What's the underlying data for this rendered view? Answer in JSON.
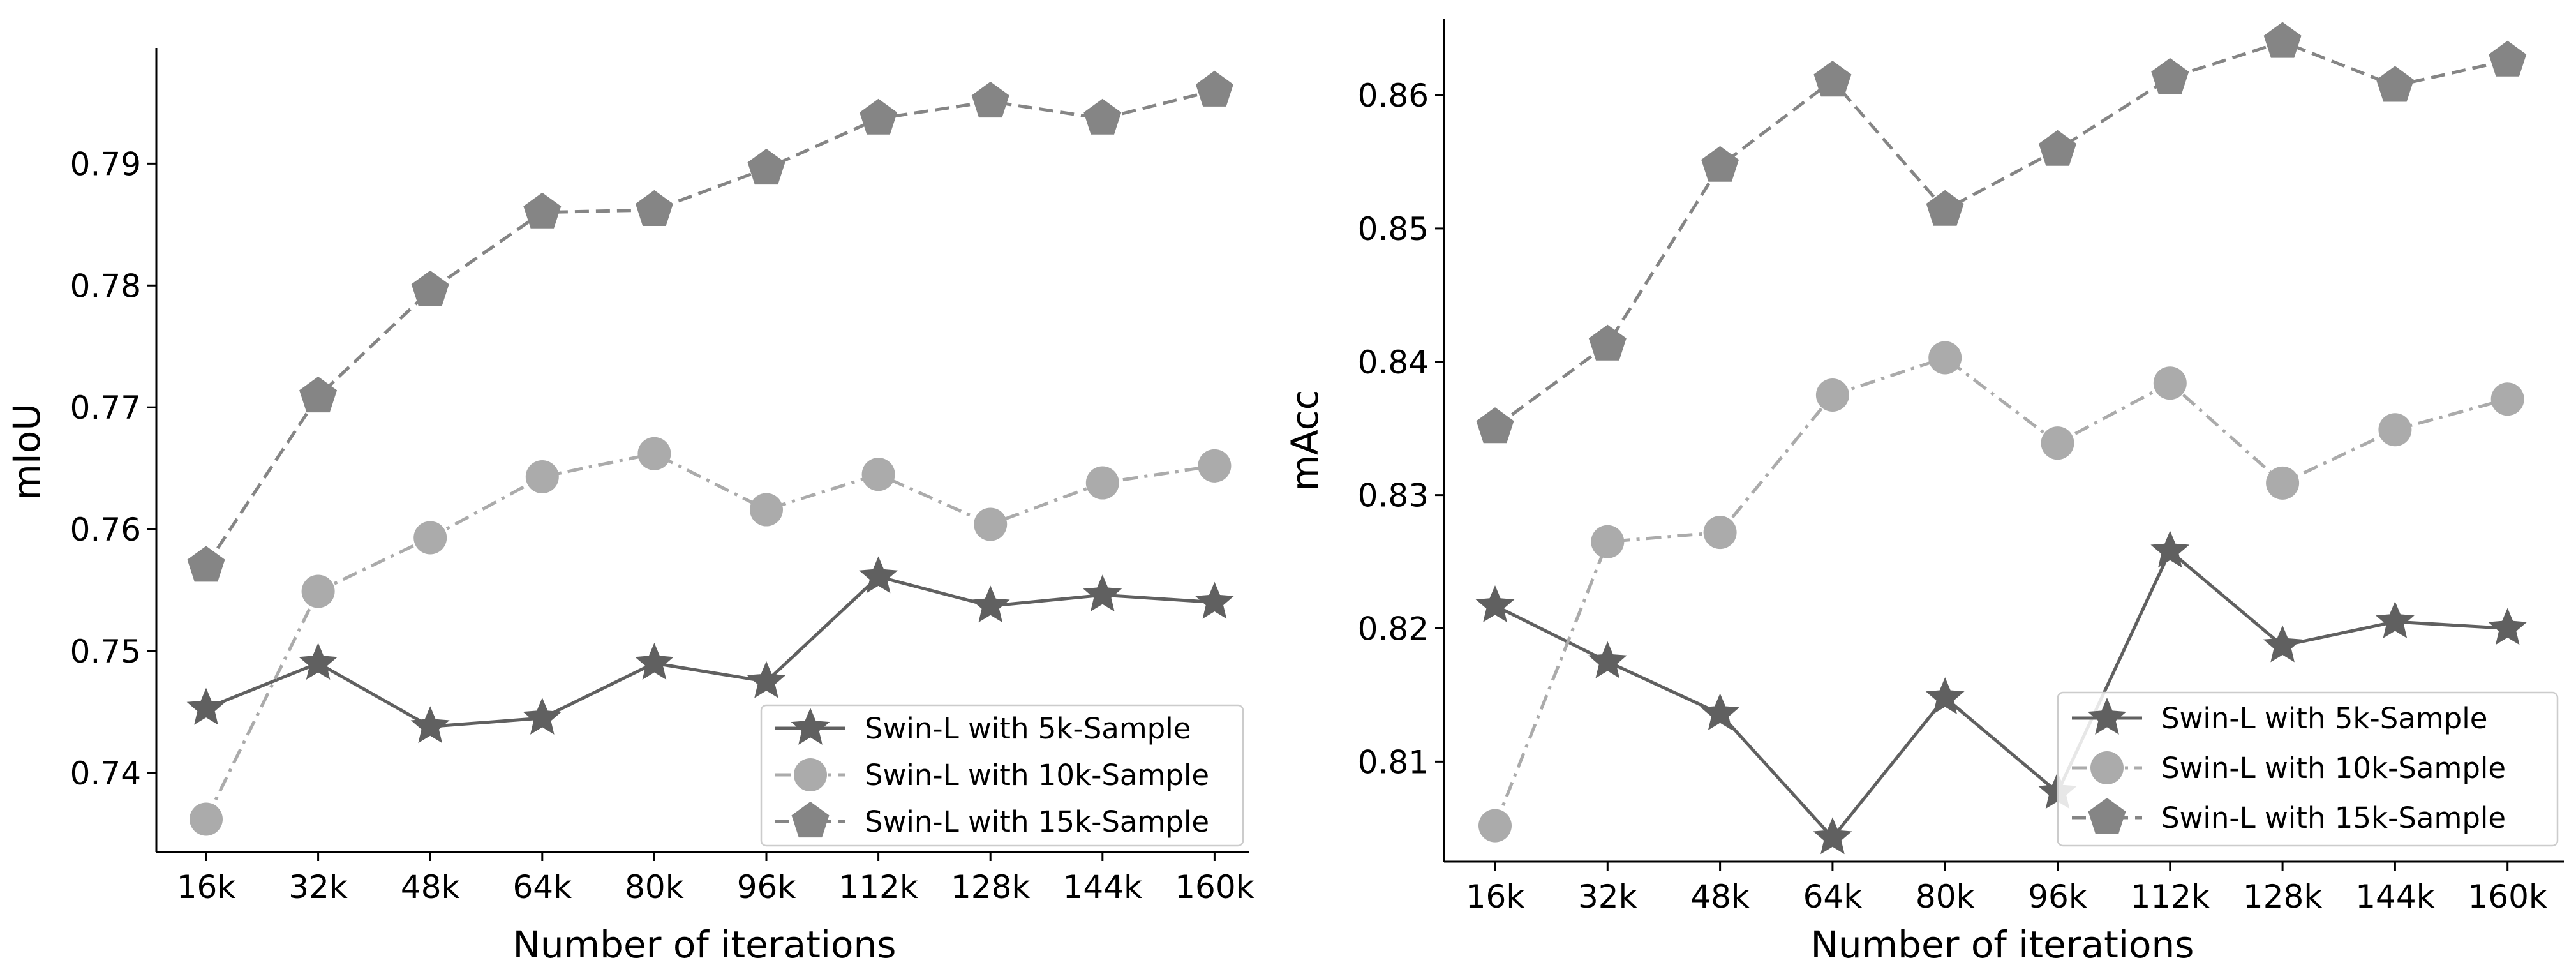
{
  "chart_data": [
    {
      "type": "line",
      "title": "",
      "xlabel": "Number of iterations",
      "ylabel": "mIoU",
      "categories": [
        "16k",
        "32k",
        "48k",
        "64k",
        "80k",
        "96k",
        "112k",
        "128k",
        "144k",
        "160k"
      ],
      "ylim": [
        0.7335,
        0.7995
      ],
      "yticks": [
        0.74,
        0.75,
        0.76,
        0.77,
        0.78,
        0.79
      ],
      "ytick_labels": [
        "0.74",
        "0.75",
        "0.76",
        "0.77",
        "0.78",
        "0.79"
      ],
      "legend_position": "lower-right",
      "series": [
        {
          "name": "Swin-L with 5k-Sample",
          "marker": "star",
          "linestyle": "solid",
          "color": "#606060",
          "values": [
            0.7453,
            0.749,
            0.7438,
            0.7445,
            0.749,
            0.7475,
            0.7561,
            0.7537,
            0.7546,
            0.754
          ]
        },
        {
          "name": "Swin-L with 10k-Sample",
          "marker": "circle",
          "linestyle": "dashdot",
          "color": "#ababab",
          "values": [
            0.7362,
            0.7549,
            0.7593,
            0.7643,
            0.7662,
            0.7616,
            0.7645,
            0.7604,
            0.7638,
            0.7652
          ]
        },
        {
          "name": "Swin-L with 15k-Sample",
          "marker": "pentagon",
          "linestyle": "dashed",
          "color": "#858585",
          "values": [
            0.757,
            0.7709,
            0.7796,
            0.786,
            0.7862,
            0.7896,
            0.7937,
            0.7951,
            0.7937,
            0.796
          ]
        }
      ]
    },
    {
      "type": "line",
      "title": "",
      "xlabel": "Number of iterations",
      "ylabel": "mAcc",
      "categories": [
        "16k",
        "32k",
        "48k",
        "64k",
        "80k",
        "96k",
        "112k",
        "128k",
        "144k",
        "160k"
      ],
      "ylim": [
        0.8025,
        0.8657
      ],
      "yticks": [
        0.81,
        0.82,
        0.83,
        0.84,
        0.85,
        0.86
      ],
      "ytick_labels": [
        "0.81",
        "0.82",
        "0.83",
        "0.84",
        "0.85",
        "0.86"
      ],
      "legend_position": "lower-right",
      "series": [
        {
          "name": "Swin-L with 5k-Sample",
          "marker": "star",
          "linestyle": "solid",
          "color": "#606060",
          "values": [
            0.8217,
            0.8175,
            0.8136,
            0.8043,
            0.8148,
            0.8077,
            0.8258,
            0.8187,
            0.8205,
            0.82
          ]
        },
        {
          "name": "Swin-L with 10k-Sample",
          "marker": "circle",
          "linestyle": "dashdot",
          "color": "#ababab",
          "values": [
            0.8052,
            0.8265,
            0.8272,
            0.8375,
            0.8403,
            0.8339,
            0.8384,
            0.8309,
            0.8349,
            0.8372
          ]
        },
        {
          "name": "Swin-L with 15k-Sample",
          "marker": "pentagon",
          "linestyle": "dashed",
          "color": "#858585",
          "values": [
            0.8351,
            0.8413,
            0.8547,
            0.8611,
            0.8514,
            0.8559,
            0.8613,
            0.864,
            0.8607,
            0.8626
          ]
        }
      ]
    }
  ]
}
